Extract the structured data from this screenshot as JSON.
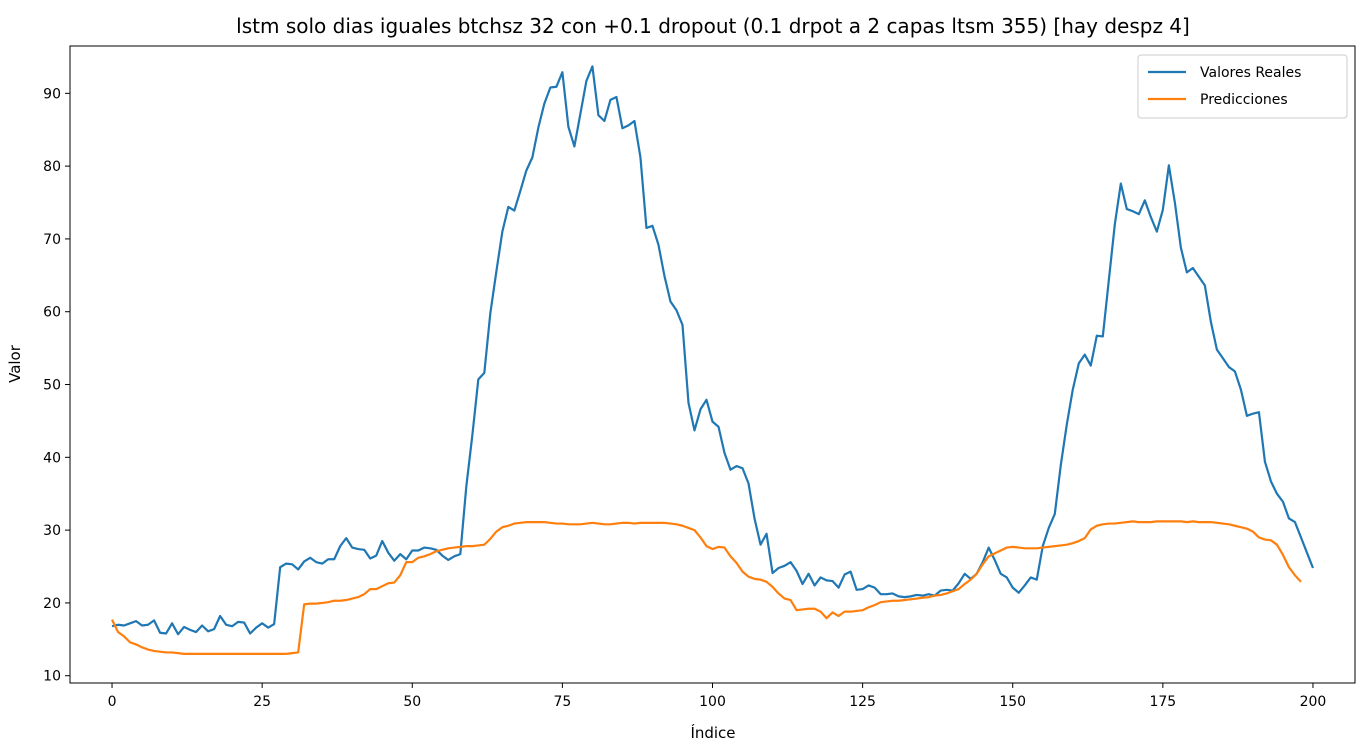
{
  "chart_data": {
    "type": "line",
    "title": "lstm solo dias iguales btchsz 32 con +0.1 dropout (0.1 drpot a 2 capas ltsm 355) [hay despz 4]",
    "xlabel": "Índice",
    "ylabel": "Valor",
    "xlim": [
      -7,
      207
    ],
    "ylim": [
      9,
      96.5
    ],
    "xticks": [
      0,
      25,
      50,
      75,
      100,
      125,
      150,
      175,
      200
    ],
    "yticks": [
      10,
      20,
      30,
      40,
      50,
      60,
      70,
      80,
      90
    ],
    "grid": false,
    "legend_position": "top-right",
    "series": [
      {
        "name": "Valores Reales",
        "color": "#1f77b4",
        "values": [
          16.8,
          17.0,
          16.9,
          17.2,
          17.5,
          16.9,
          17.0,
          17.6,
          15.9,
          15.8,
          17.2,
          15.7,
          16.7,
          16.3,
          16.0,
          16.9,
          16.1,
          16.4,
          18.2,
          17.0,
          16.8,
          17.4,
          17.3,
          15.8,
          16.6,
          17.2,
          16.6,
          17.1,
          24.9,
          25.4,
          25.3,
          24.6,
          25.7,
          26.2,
          25.6,
          25.4,
          26.0,
          26.0,
          27.8,
          28.9,
          27.6,
          27.4,
          27.3,
          26.1,
          26.5,
          28.5,
          26.9,
          25.8,
          26.7,
          26.0,
          27.2,
          27.2,
          27.6,
          27.5,
          27.3,
          26.5,
          25.9,
          26.4,
          26.7,
          36.0,
          43.0,
          50.7,
          51.6,
          59.8,
          65.5,
          71.0,
          74.4,
          73.9,
          76.6,
          79.4,
          81.2,
          85.3,
          88.6,
          90.8,
          90.9,
          92.9,
          85.4,
          82.7,
          87.2,
          91.7,
          93.7,
          87.0,
          86.2,
          89.1,
          89.5,
          85.2,
          85.6,
          86.2,
          81.2,
          71.5,
          71.8,
          69.2,
          64.9,
          61.4,
          60.2,
          58.2,
          47.5,
          43.7,
          46.6,
          47.9,
          44.9,
          44.2,
          40.6,
          38.3,
          38.8,
          38.5,
          36.4,
          31.6,
          28.0,
          29.5,
          24.1,
          24.8,
          25.1,
          25.6,
          24.4,
          22.6,
          24.0,
          22.4,
          23.5,
          23.1,
          23.0,
          22.1,
          23.9,
          24.3,
          21.8,
          21.9,
          22.4,
          22.1,
          21.2,
          21.2,
          21.3,
          20.9,
          20.8,
          20.9,
          21.1,
          21.0,
          21.2,
          21.0,
          21.7,
          21.8,
          21.7,
          22.7,
          24.0,
          23.3,
          24.0,
          25.6,
          27.6,
          25.9,
          24.0,
          23.5,
          22.1,
          21.4,
          22.4,
          23.5,
          23.2,
          27.8,
          30.3,
          32.2,
          38.9,
          44.5,
          49.3,
          52.9,
          54.1,
          52.6,
          56.7,
          56.6,
          64.3,
          72.0,
          77.6,
          74.1,
          73.8,
          73.4,
          75.3,
          73.0,
          71.0,
          74.0,
          80.1,
          75.0,
          68.8,
          65.4,
          66.0,
          64.8,
          63.6,
          58.6,
          54.8,
          53.6,
          52.4,
          51.8,
          49.3,
          45.7,
          46.0,
          46.2,
          39.4,
          36.7,
          35.0,
          33.9,
          31.6,
          31.1,
          29.0,
          26.9,
          24.8
        ]
      },
      {
        "name": "Predicciones",
        "color": "#ff7f0e",
        "values": [
          17.7,
          16.0,
          15.4,
          14.6,
          14.3,
          13.9,
          13.6,
          13.4,
          13.3,
          13.2,
          13.2,
          13.1,
          13.0,
          13.0,
          13.0,
          13.0,
          13.0,
          13.0,
          13.0,
          13.0,
          13.0,
          13.0,
          13.0,
          13.0,
          13.0,
          13.0,
          13.0,
          13.0,
          13.0,
          13.0,
          13.1,
          13.2,
          19.8,
          19.9,
          19.9,
          20.0,
          20.1,
          20.3,
          20.3,
          20.4,
          20.6,
          20.8,
          21.2,
          21.9,
          21.9,
          22.3,
          22.7,
          22.8,
          23.8,
          25.6,
          25.6,
          26.2,
          26.4,
          26.7,
          27.1,
          27.3,
          27.5,
          27.6,
          27.7,
          27.8,
          27.8,
          27.9,
          28.0,
          28.8,
          29.8,
          30.4,
          30.6,
          30.9,
          31.0,
          31.1,
          31.1,
          31.1,
          31.1,
          31.0,
          30.9,
          30.9,
          30.8,
          30.8,
          30.8,
          30.9,
          31.0,
          30.9,
          30.8,
          30.8,
          30.9,
          31.0,
          31.0,
          30.9,
          31.0,
          31.0,
          31.0,
          31.0,
          31.0,
          30.9,
          30.8,
          30.6,
          30.3,
          30.0,
          29.0,
          27.8,
          27.4,
          27.7,
          27.6,
          26.4,
          25.5,
          24.3,
          23.6,
          23.3,
          23.2,
          22.9,
          22.2,
          21.3,
          20.6,
          20.4,
          19.0,
          19.1,
          19.2,
          19.2,
          18.8,
          17.9,
          18.7,
          18.2,
          18.8,
          18.8,
          18.9,
          19.0,
          19.4,
          19.7,
          20.1,
          20.2,
          20.3,
          20.3,
          20.4,
          20.5,
          20.6,
          20.7,
          20.8,
          21.0,
          21.1,
          21.3,
          21.6,
          21.9,
          22.6,
          23.2,
          24.0,
          25.3,
          26.4,
          26.8,
          27.2,
          27.6,
          27.7,
          27.6,
          27.5,
          27.5,
          27.5,
          27.6,
          27.7,
          27.8,
          27.9,
          28.0,
          28.2,
          28.5,
          28.9,
          30.1,
          30.6,
          30.8,
          30.9,
          30.9,
          31.0,
          31.1,
          31.2,
          31.1,
          31.1,
          31.1,
          31.2,
          31.2,
          31.2,
          31.2,
          31.2,
          31.1,
          31.2,
          31.1,
          31.1,
          31.1,
          31.0,
          30.9,
          30.8,
          30.6,
          30.4,
          30.2,
          29.8,
          29.0,
          28.7,
          28.6,
          28.0,
          26.6,
          24.9,
          23.8,
          22.9
        ]
      }
    ]
  }
}
